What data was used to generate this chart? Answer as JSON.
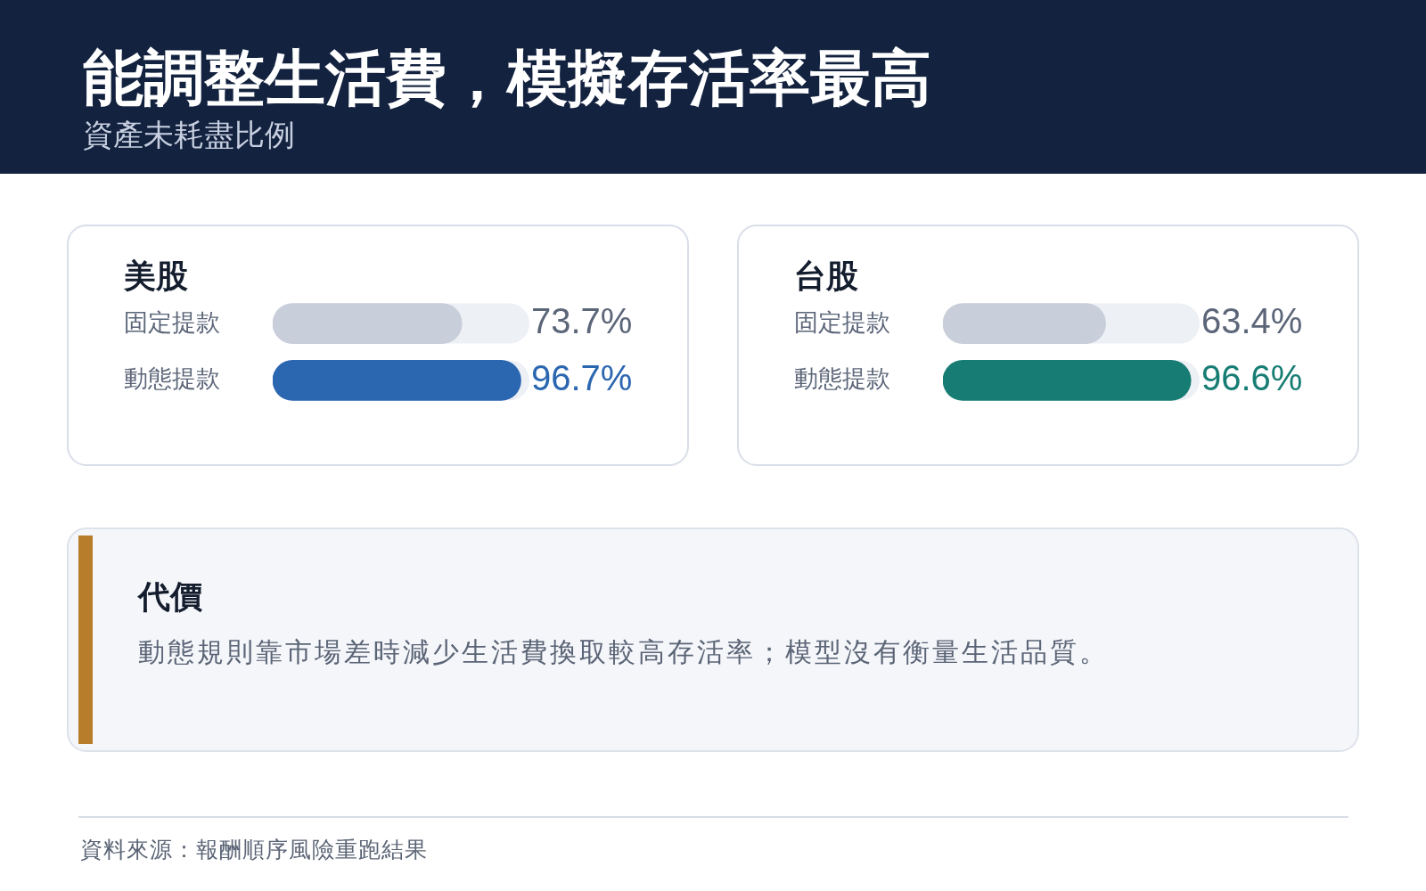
{
  "chart_data": [
    {
      "type": "other",
      "title": "能調整生活費，模擬存活率最高",
      "subtitle": "資產未耗盡比例"
    },
    {
      "type": "bar",
      "orientation": "horizontal",
      "title": "美股",
      "categories": [
        "固定提款",
        "動態提款"
      ],
      "values": [
        73.7,
        96.7
      ],
      "colors": [
        "#c8ceda",
        "#2b66b0"
      ],
      "xlim": [
        0,
        100
      ],
      "value_labels": [
        "73.7%",
        "96.7%"
      ],
      "tick_labels": "y"
    },
    {
      "type": "bar",
      "orientation": "horizontal",
      "title": "台股",
      "categories": [
        "固定提款",
        "動態提款"
      ],
      "values": [
        63.4,
        96.6
      ],
      "colors": [
        "#c8ceda",
        "#177d74"
      ],
      "xlim": [
        0,
        100
      ],
      "value_labels": [
        "63.4%",
        "96.6%"
      ],
      "tick_labels": "y"
    },
    {
      "type": "other",
      "title": "代價",
      "annotations": [
        "動態規則靠市場差時減少生活費換取較高存活率；模型沒有衡量生活品質。"
      ]
    },
    {
      "type": "other",
      "annotations": [
        "資料來源：報酬順序風險重跑結果"
      ]
    }
  ]
}
